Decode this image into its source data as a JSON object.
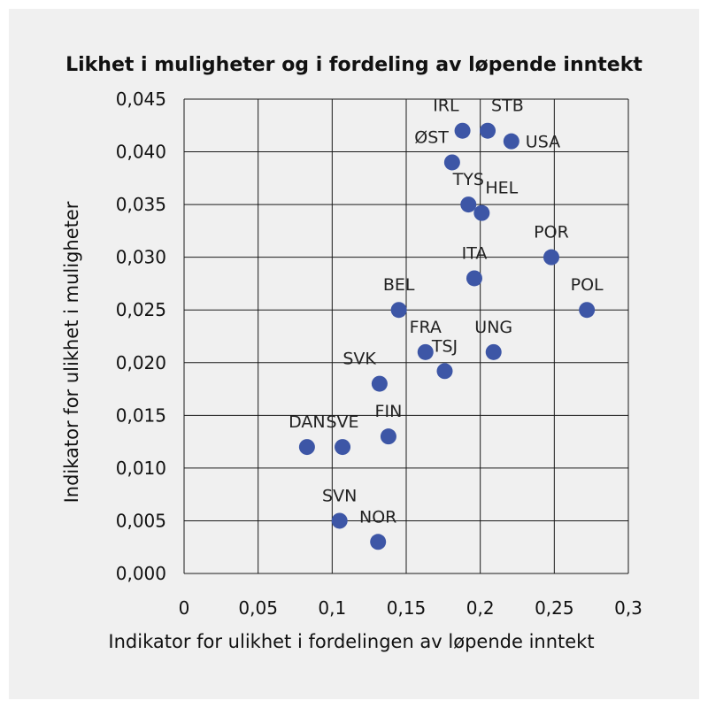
{
  "chart_data": {
    "type": "scatter",
    "title": "Likhet i muligheter og i fordeling av løpende inntekt",
    "xlabel": "Indikator for ulikhet i fordelingen av løpende inntekt",
    "ylabel": "Indikator for ulikhet i muligheter",
    "xlim": [
      0,
      0.3
    ],
    "ylim": [
      0,
      0.045
    ],
    "x_ticks": [
      0,
      0.05,
      0.1,
      0.15,
      0.2,
      0.25,
      0.3
    ],
    "x_tick_labels": [
      "0",
      "0,05",
      "0,1",
      "0,15",
      "0,2",
      "0,25",
      "0,3"
    ],
    "y_ticks": [
      0,
      0.005,
      0.01,
      0.015,
      0.02,
      0.025,
      0.03,
      0.035,
      0.04,
      0.045
    ],
    "y_tick_labels": [
      "0,000",
      "0,005",
      "0,010",
      "0,015",
      "0,020",
      "0,025",
      "0,030",
      "0,035",
      "0,040",
      "0,045"
    ],
    "grid": true,
    "marker_color": "#3d56a6",
    "points": [
      {
        "label": "IRL",
        "x": 0.188,
        "y": 0.042,
        "label_pos": "above-left"
      },
      {
        "label": "STB",
        "x": 0.205,
        "y": 0.042,
        "label_pos": "above-right"
      },
      {
        "label": "USA",
        "x": 0.221,
        "y": 0.041,
        "label_pos": "right"
      },
      {
        "label": "ØST",
        "x": 0.181,
        "y": 0.039,
        "label_pos": "above-left"
      },
      {
        "label": "TYS",
        "x": 0.192,
        "y": 0.035,
        "label_pos": "above"
      },
      {
        "label": "HEL",
        "x": 0.201,
        "y": 0.0342,
        "label_pos": "above-right"
      },
      {
        "label": "POR",
        "x": 0.248,
        "y": 0.03,
        "label_pos": "above"
      },
      {
        "label": "ITA",
        "x": 0.196,
        "y": 0.028,
        "label_pos": "above"
      },
      {
        "label": "POL",
        "x": 0.272,
        "y": 0.025,
        "label_pos": "above"
      },
      {
        "label": "BEL",
        "x": 0.145,
        "y": 0.025,
        "label_pos": "above"
      },
      {
        "label": "UNG",
        "x": 0.209,
        "y": 0.021,
        "label_pos": "above"
      },
      {
        "label": "FRA",
        "x": 0.163,
        "y": 0.021,
        "label_pos": "above"
      },
      {
        "label": "TSJ",
        "x": 0.176,
        "y": 0.0192,
        "label_pos": "above"
      },
      {
        "label": "SVK",
        "x": 0.132,
        "y": 0.018,
        "label_pos": "above-left"
      },
      {
        "label": "FIN",
        "x": 0.138,
        "y": 0.013,
        "label_pos": "above"
      },
      {
        "label": "DAN",
        "x": 0.083,
        "y": 0.012,
        "label_pos": "above"
      },
      {
        "label": "SVE",
        "x": 0.107,
        "y": 0.012,
        "label_pos": "above"
      },
      {
        "label": "SVN",
        "x": 0.105,
        "y": 0.005,
        "label_pos": "above"
      },
      {
        "label": "NOR",
        "x": 0.131,
        "y": 0.003,
        "label_pos": "above"
      }
    ]
  }
}
